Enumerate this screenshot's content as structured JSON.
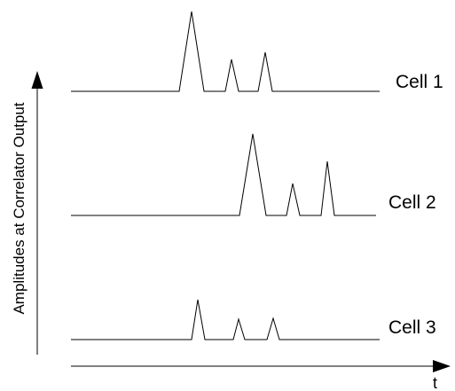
{
  "diagram": {
    "axes": {
      "y_label": "Amplitudes at Correlator Output",
      "x_label": "t"
    },
    "traces": [
      {
        "label": "Cell 1",
        "peaks": 3
      },
      {
        "label": "Cell 2",
        "peaks": 3
      },
      {
        "label": "Cell 3",
        "peaks": 3
      }
    ]
  }
}
